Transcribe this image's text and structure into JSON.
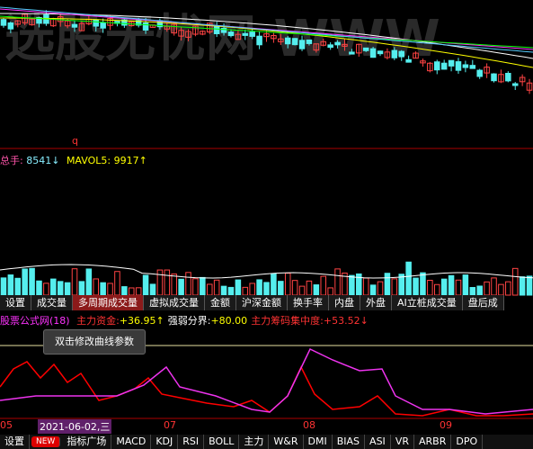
{
  "watermark": "选股无忧网 WWW",
  "price_panel": {
    "marker": "q"
  },
  "volume_panel": {
    "total_label": "总手:",
    "total_value": "8541↓",
    "mavol_label": "MAVOL5:",
    "mavol_value": "9917↑"
  },
  "tabs": [
    "设置",
    "成交量",
    "多周期成交量",
    "虚拟成交量",
    "金额",
    "沪深金额",
    "换手率",
    "内盘",
    "外盘",
    "AI立桩成交量",
    "盘后成"
  ],
  "active_tab": 2,
  "indicator": {
    "name": "股票公式网(18)",
    "items": [
      {
        "label": "主力资金:",
        "value": "+36.95↑"
      },
      {
        "label": "强弱分界:",
        "value": "+80.00"
      },
      {
        "label": "主力筹码集中度:",
        "value": "+53.52↓"
      }
    ]
  },
  "tooltip": "双击修改曲线参数",
  "date_axis": [
    "05",
    "2021-06-02,三",
    "07",
    "08",
    "09"
  ],
  "toolbar": {
    "settings": "设置",
    "new_badge": "NEW",
    "items": [
      "指标广场",
      "MACD",
      "KDJ",
      "RSI",
      "BOLL",
      "主力",
      "W&R",
      "DMI",
      "BIAS",
      "ASI",
      "VR",
      "ARBR",
      "DPO"
    ]
  }
}
